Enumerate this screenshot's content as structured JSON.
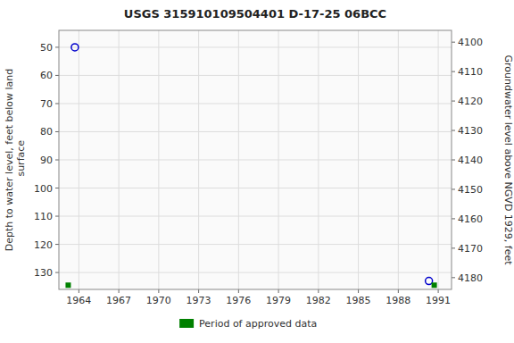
{
  "chart_data": {
    "type": "scatter",
    "title": "USGS 315910109504401 D-17-25 06BCC",
    "ylabel": "Depth to water level, feet below land\n surface",
    "y2label": "Groundwater level above NGVD 1929, feet",
    "xlim": [
      1962.5,
      1992.0
    ],
    "ylim": [
      136,
      44
    ],
    "y2lim": [
      4184,
      4096
    ],
    "xticks": [
      1964,
      1967,
      1970,
      1973,
      1976,
      1979,
      1982,
      1985,
      1988,
      1991
    ],
    "yticks": [
      50,
      60,
      70,
      80,
      90,
      100,
      110,
      120,
      130
    ],
    "y2ticks": [
      4180,
      4170,
      4160,
      4150,
      4140,
      4130,
      4120,
      4110,
      4100
    ],
    "grid": true,
    "legend": "bottom",
    "series": [
      {
        "x": [
          1963.7,
          1990.3
        ],
        "values": [
          50.0,
          133.0
        ],
        "color": "#0000cc",
        "marker": "circle"
      },
      {
        "name": "Period of approved data",
        "x": [
          1963.2,
          1990.7
        ],
        "values": [
          134.5,
          134.5
        ],
        "color": "#008000",
        "marker": "square"
      }
    ]
  }
}
